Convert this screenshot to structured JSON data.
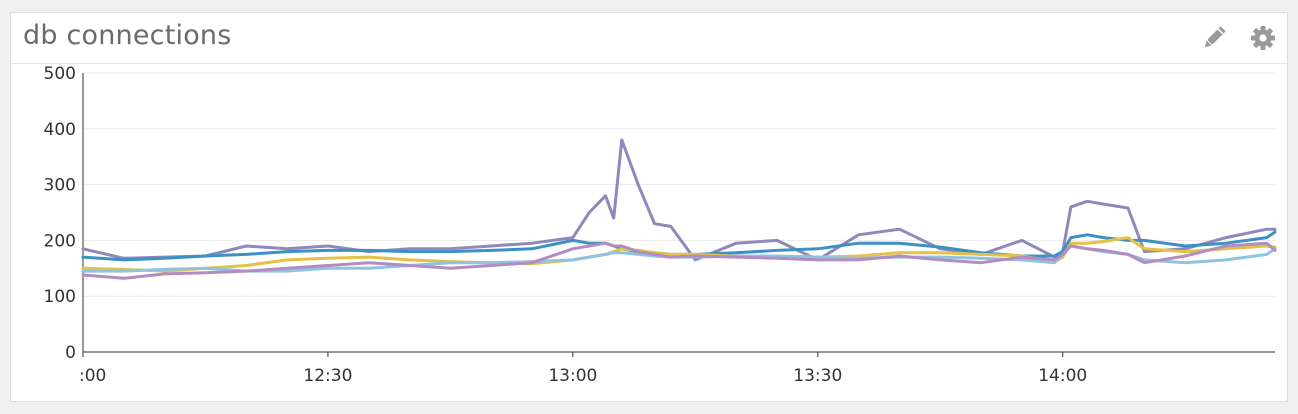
{
  "widget": {
    "title": "db connections",
    "icons": {
      "edit": "pencil-icon",
      "settings": "gear-icon"
    }
  },
  "chart_data": {
    "type": "line",
    "title": "db connections",
    "xlabel": "",
    "ylabel": "",
    "ylim": [
      0,
      500
    ],
    "yticks": [
      0,
      100,
      200,
      300,
      400,
      500
    ],
    "xlim": [
      "12:00",
      "14:26"
    ],
    "xticks": [
      {
        "t": "12:00",
        "label": ":00"
      },
      {
        "t": "12:30",
        "label": "12:30"
      },
      {
        "t": "13:00",
        "label": "13:00"
      },
      {
        "t": "13:30",
        "label": "13:30"
      },
      {
        "t": "14:00",
        "label": "14:00"
      }
    ],
    "grid": true,
    "legend": "none",
    "x": [
      "12:00",
      "12:05",
      "12:10",
      "12:15",
      "12:20",
      "12:25",
      "12:30",
      "12:35",
      "12:40",
      "12:45",
      "12:50",
      "12:55",
      "13:00",
      "13:02",
      "13:04",
      "13:05",
      "13:06",
      "13:08",
      "13:10",
      "13:12",
      "13:15",
      "13:20",
      "13:25",
      "13:30",
      "13:35",
      "13:40",
      "13:45",
      "13:50",
      "13:55",
      "13:59",
      "14:00",
      "14:01",
      "14:03",
      "14:05",
      "14:08",
      "14:10",
      "14:15",
      "14:20",
      "14:25",
      "14:26"
    ],
    "series": [
      {
        "color": "#8f88bb",
        "values": [
          185,
          168,
          170,
          172,
          190,
          185,
          190,
          180,
          185,
          185,
          190,
          195,
          205,
          250,
          280,
          240,
          380,
          300,
          230,
          225,
          165,
          195,
          200,
          165,
          210,
          220,
          185,
          175,
          200,
          170,
          180,
          260,
          270,
          265,
          258,
          180,
          185,
          205,
          220,
          220
        ]
      },
      {
        "color": "#3d90c3",
        "values": [
          170,
          165,
          168,
          172,
          175,
          180,
          182,
          182,
          180,
          180,
          182,
          185,
          200,
          195,
          195,
          190,
          185,
          180,
          178,
          175,
          175,
          178,
          182,
          185,
          195,
          195,
          188,
          178,
          172,
          172,
          180,
          205,
          210,
          205,
          200,
          200,
          190,
          195,
          205,
          215
        ]
      },
      {
        "color": "#e3c245",
        "values": [
          150,
          148,
          145,
          150,
          155,
          165,
          168,
          170,
          165,
          162,
          160,
          158,
          165,
          170,
          175,
          180,
          185,
          182,
          178,
          175,
          175,
          172,
          172,
          170,
          172,
          178,
          178,
          175,
          172,
          162,
          170,
          195,
          195,
          198,
          205,
          185,
          180,
          185,
          190,
          188
        ]
      },
      {
        "color": "#8fc3e0",
        "values": [
          145,
          145,
          148,
          150,
          145,
          145,
          150,
          150,
          155,
          160,
          160,
          162,
          165,
          170,
          175,
          178,
          178,
          175,
          172,
          170,
          170,
          172,
          172,
          170,
          168,
          170,
          170,
          168,
          165,
          160,
          175,
          190,
          185,
          180,
          175,
          165,
          160,
          165,
          175,
          185
        ]
      },
      {
        "color": "#b38cc2",
        "values": [
          138,
          132,
          140,
          142,
          145,
          150,
          155,
          160,
          155,
          150,
          155,
          160,
          185,
          190,
          195,
          190,
          190,
          180,
          175,
          170,
          172,
          170,
          168,
          165,
          165,
          172,
          165,
          160,
          170,
          165,
          175,
          190,
          185,
          182,
          175,
          160,
          172,
          190,
          195,
          182
        ]
      }
    ]
  }
}
